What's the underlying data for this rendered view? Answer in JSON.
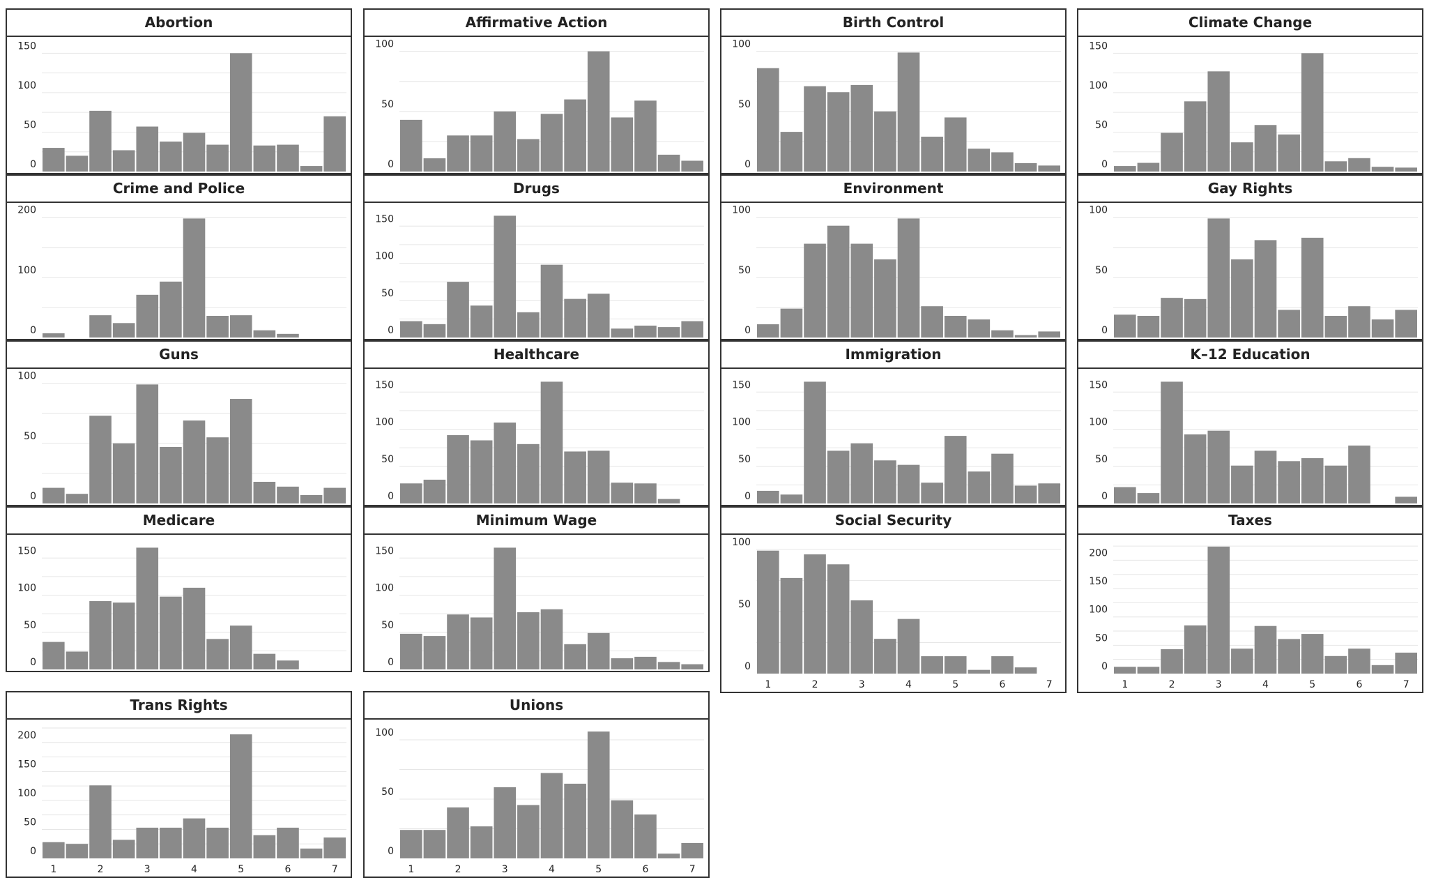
{
  "colors": {
    "bar": "#8a8a8a",
    "frame": "#333333",
    "grid": "#e6e6e6",
    "text": "#222222"
  },
  "chart_data": [
    {
      "type": "bar",
      "title": "Abortion",
      "x": [
        1,
        1.5,
        2,
        2.5,
        3,
        3.5,
        4,
        4.5,
        5,
        5.5,
        6,
        6.5,
        7
      ],
      "values": [
        30,
        20,
        77,
        27,
        57,
        38,
        49,
        34,
        150,
        33,
        34,
        7,
        70
      ],
      "yticks": [
        0,
        50,
        100,
        150
      ],
      "ylim": [
        0,
        160
      ],
      "show_xticks": false
    },
    {
      "type": "bar",
      "title": "Affirmative Action",
      "x": [
        1,
        1.5,
        2,
        2.5,
        3,
        3.5,
        4,
        4.5,
        5,
        5.5,
        6,
        6.5,
        7
      ],
      "values": [
        43,
        11,
        30,
        30,
        50,
        27,
        48,
        60,
        100,
        45,
        59,
        14,
        9
      ],
      "yticks": [
        0,
        50,
        100
      ],
      "ylim": [
        0,
        105
      ],
      "show_xticks": false
    },
    {
      "type": "bar",
      "title": "Birth Control",
      "x": [
        1,
        1.5,
        2,
        2.5,
        3,
        3.5,
        4,
        4.5,
        5,
        5.5,
        6,
        6.5,
        7
      ],
      "values": [
        86,
        33,
        71,
        66,
        72,
        50,
        99,
        29,
        45,
        19,
        16,
        7,
        5
      ],
      "yticks": [
        0,
        50,
        100
      ],
      "ylim": [
        0,
        105
      ],
      "show_xticks": false
    },
    {
      "type": "bar",
      "title": "Climate Change",
      "x": [
        1,
        1.5,
        2,
        2.5,
        3,
        3.5,
        4,
        4.5,
        5,
        5.5,
        6,
        6.5,
        7
      ],
      "values": [
        7,
        11,
        49,
        89,
        127,
        37,
        59,
        47,
        150,
        13,
        17,
        6,
        5
      ],
      "yticks": [
        0,
        50,
        100,
        150
      ],
      "ylim": [
        0,
        160
      ],
      "show_xticks": false
    },
    {
      "type": "bar",
      "title": "Crime and Police",
      "x": [
        1,
        1.5,
        2,
        2.5,
        3,
        3.5,
        4,
        4.5,
        5,
        5.5,
        6,
        6.5,
        7
      ],
      "values": [
        7,
        0,
        37,
        24,
        71,
        93,
        198,
        36,
        37,
        12,
        6,
        0,
        0
      ],
      "yticks": [
        0,
        100,
        200
      ],
      "ylim": [
        0,
        210
      ],
      "show_xticks": false
    },
    {
      "type": "bar",
      "title": "Drugs",
      "x": [
        1,
        1.5,
        2,
        2.5,
        3,
        3.5,
        4,
        4.5,
        5,
        5.5,
        6,
        6.5,
        7
      ],
      "values": [
        22,
        18,
        75,
        43,
        164,
        34,
        98,
        52,
        59,
        12,
        16,
        14,
        22
      ],
      "yticks": [
        0,
        50,
        100,
        150
      ],
      "ylim": [
        0,
        170
      ],
      "show_xticks": false
    },
    {
      "type": "bar",
      "title": "Environment",
      "x": [
        1,
        1.5,
        2,
        2.5,
        3,
        3.5,
        4,
        4.5,
        5,
        5.5,
        6,
        6.5,
        7
      ],
      "values": [
        11,
        24,
        78,
        93,
        78,
        65,
        99,
        26,
        18,
        15,
        6,
        2,
        5
      ],
      "yticks": [
        0,
        50,
        100
      ],
      "ylim": [
        0,
        105
      ],
      "show_xticks": false
    },
    {
      "type": "bar",
      "title": "Gay Rights",
      "x": [
        1,
        1.5,
        2,
        2.5,
        3,
        3.5,
        4,
        4.5,
        5,
        5.5,
        6,
        6.5,
        7
      ],
      "values": [
        19,
        18,
        33,
        32,
        99,
        65,
        81,
        23,
        83,
        18,
        26,
        15,
        23
      ],
      "yticks": [
        0,
        50,
        100
      ],
      "ylim": [
        0,
        105
      ],
      "show_xticks": false
    },
    {
      "type": "bar",
      "title": "Guns",
      "x": [
        1,
        1.5,
        2,
        2.5,
        3,
        3.5,
        4,
        4.5,
        5,
        5.5,
        6,
        6.5,
        7
      ],
      "values": [
        13,
        8,
        73,
        50,
        99,
        47,
        69,
        55,
        87,
        18,
        14,
        7,
        13
      ],
      "yticks": [
        0,
        50,
        100
      ],
      "ylim": [
        0,
        105
      ],
      "show_xticks": false
    },
    {
      "type": "bar",
      "title": "Healthcare",
      "x": [
        1,
        1.5,
        2,
        2.5,
        3,
        3.5,
        4,
        4.5,
        5,
        5.5,
        6,
        6.5,
        7
      ],
      "values": [
        27,
        32,
        92,
        85,
        109,
        80,
        164,
        70,
        71,
        28,
        27,
        6,
        0
      ],
      "yticks": [
        0,
        50,
        100,
        150
      ],
      "ylim": [
        0,
        170
      ],
      "show_xticks": false
    },
    {
      "type": "bar",
      "title": "Immigration",
      "x": [
        1,
        1.5,
        2,
        2.5,
        3,
        3.5,
        4,
        4.5,
        5,
        5.5,
        6,
        6.5,
        7
      ],
      "values": [
        17,
        12,
        164,
        71,
        81,
        58,
        52,
        28,
        91,
        43,
        67,
        24,
        27
      ],
      "yticks": [
        0,
        50,
        100,
        150
      ],
      "ylim": [
        0,
        170
      ],
      "show_xticks": false
    },
    {
      "type": "bar",
      "title": "K–12 Education",
      "x": [
        1,
        1.5,
        2,
        2.5,
        3,
        3.5,
        4,
        4.5,
        5,
        5.5,
        6,
        6.5,
        7
      ],
      "values": [
        22,
        14,
        164,
        93,
        98,
        51,
        71,
        57,
        61,
        51,
        78,
        0,
        9
      ],
      "yticks": [
        0,
        50,
        100,
        150
      ],
      "ylim": [
        0,
        170
      ],
      "show_xticks": false
    },
    {
      "type": "bar",
      "title": "Medicare",
      "x": [
        1,
        1.5,
        2,
        2.5,
        3,
        3.5,
        4,
        4.5,
        5,
        5.5,
        6,
        6.5,
        7
      ],
      "values": [
        37,
        24,
        92,
        90,
        164,
        98,
        110,
        41,
        59,
        21,
        12,
        0,
        0
      ],
      "yticks": [
        0,
        50,
        100,
        150
      ],
      "ylim": [
        0,
        170
      ],
      "show_xticks": false
    },
    {
      "type": "bar",
      "title": "Minimum Wage",
      "x": [
        1,
        1.5,
        2,
        2.5,
        3,
        3.5,
        4,
        4.5,
        5,
        5.5,
        6,
        6.5,
        7
      ],
      "values": [
        48,
        45,
        74,
        70,
        164,
        77,
        81,
        34,
        49,
        15,
        17,
        10,
        7
      ],
      "yticks": [
        0,
        50,
        100,
        150
      ],
      "ylim": [
        0,
        170
      ],
      "show_xticks": false
    },
    {
      "type": "bar",
      "title": "Social Security",
      "x": [
        1,
        1.5,
        2,
        2.5,
        3,
        3.5,
        4,
        4.5,
        5,
        5.5,
        6,
        6.5,
        7
      ],
      "values": [
        99,
        77,
        96,
        88,
        59,
        28,
        44,
        14,
        14,
        3,
        14,
        5,
        0
      ],
      "xticks": [
        1,
        2,
        3,
        4,
        5,
        6,
        7
      ],
      "yticks": [
        0,
        50,
        100
      ],
      "ylim": [
        0,
        105
      ],
      "show_xticks": true
    },
    {
      "type": "bar",
      "title": "Taxes",
      "x": [
        1,
        1.5,
        2,
        2.5,
        3,
        3.5,
        4,
        4.5,
        5,
        5.5,
        6,
        6.5,
        7
      ],
      "values": [
        12,
        12,
        43,
        85,
        224,
        44,
        84,
        61,
        70,
        31,
        44,
        15,
        37
      ],
      "xticks": [
        1,
        2,
        3,
        4,
        5,
        6,
        7
      ],
      "yticks": [
        0,
        50,
        100,
        150,
        200
      ],
      "ylim": [
        0,
        230
      ],
      "show_xticks": true
    },
    {
      "type": "bar",
      "title": "Trans Rights",
      "x": [
        1,
        1.5,
        2,
        2.5,
        3,
        3.5,
        4,
        4.5,
        5,
        5.5,
        6,
        6.5,
        7
      ],
      "values": [
        28,
        25,
        126,
        32,
        53,
        53,
        69,
        53,
        214,
        40,
        53,
        17,
        36
      ],
      "xticks": [
        1,
        2,
        3,
        4,
        5,
        6,
        7
      ],
      "yticks": [
        0,
        50,
        100,
        150,
        200
      ],
      "ylim": [
        0,
        225
      ],
      "show_xticks": true
    },
    {
      "type": "bar",
      "title": "Unions",
      "x": [
        1,
        1.5,
        2,
        2.5,
        3,
        3.5,
        4,
        4.5,
        5,
        5.5,
        6,
        6.5,
        7
      ],
      "values": [
        24,
        24,
        43,
        27,
        60,
        45,
        72,
        63,
        107,
        49,
        37,
        4,
        13
      ],
      "xticks": [
        1,
        2,
        3,
        4,
        5,
        6,
        7
      ],
      "yticks": [
        0,
        50,
        100
      ],
      "ylim": [
        0,
        110
      ],
      "show_xticks": true
    }
  ]
}
